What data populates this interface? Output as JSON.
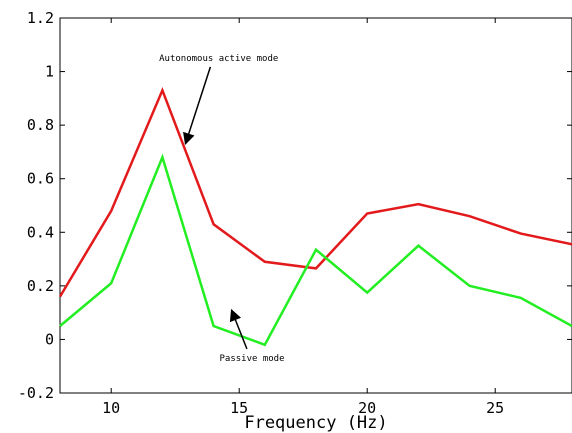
{
  "chart_data": {
    "type": "line",
    "title": "",
    "xlabel": "Frequency (Hz)",
    "ylabel": "",
    "xlim": [
      8,
      28
    ],
    "ylim": [
      -0.2,
      1.2
    ],
    "grid": false,
    "xticks": [
      10,
      15,
      20,
      25
    ],
    "xtick_labels": [
      "10",
      "15",
      "20",
      "25"
    ],
    "yticks": [
      -0.2,
      0,
      0.2,
      0.4,
      0.6,
      0.8,
      1,
      1.2
    ],
    "ytick_labels": [
      "-0.2",
      "0",
      "0.2",
      "0.4",
      "0.6",
      "0.8",
      "1",
      "1.2"
    ],
    "x": [
      8,
      10,
      12,
      14,
      16,
      18,
      20,
      22,
      24,
      26,
      28
    ],
    "series": [
      {
        "color": "#e31a1c",
        "values": [
          0.16,
          0.48,
          0.93,
          0.43,
          0.29,
          0.265,
          0.47,
          0.505,
          0.46,
          0.395,
          0.355
        ]
      },
      {
        "color": "#22ee22",
        "values": [
          0.05,
          0.21,
          0.68,
          0.05,
          -0.02,
          0.335,
          0.175,
          0.35,
          0.2,
          0.155,
          0.05
        ]
      }
    ],
    "annotations": [
      {
        "text": "Autonomous active mode",
        "x": 14.2,
        "y": 1.04,
        "arrow_to": {
          "x": 12.9,
          "y": 0.73
        }
      },
      {
        "text": "Passive mode",
        "x": 15.5,
        "y": -0.08,
        "arrow_to": {
          "x": 14.7,
          "y": 0.11
        }
      }
    ]
  }
}
